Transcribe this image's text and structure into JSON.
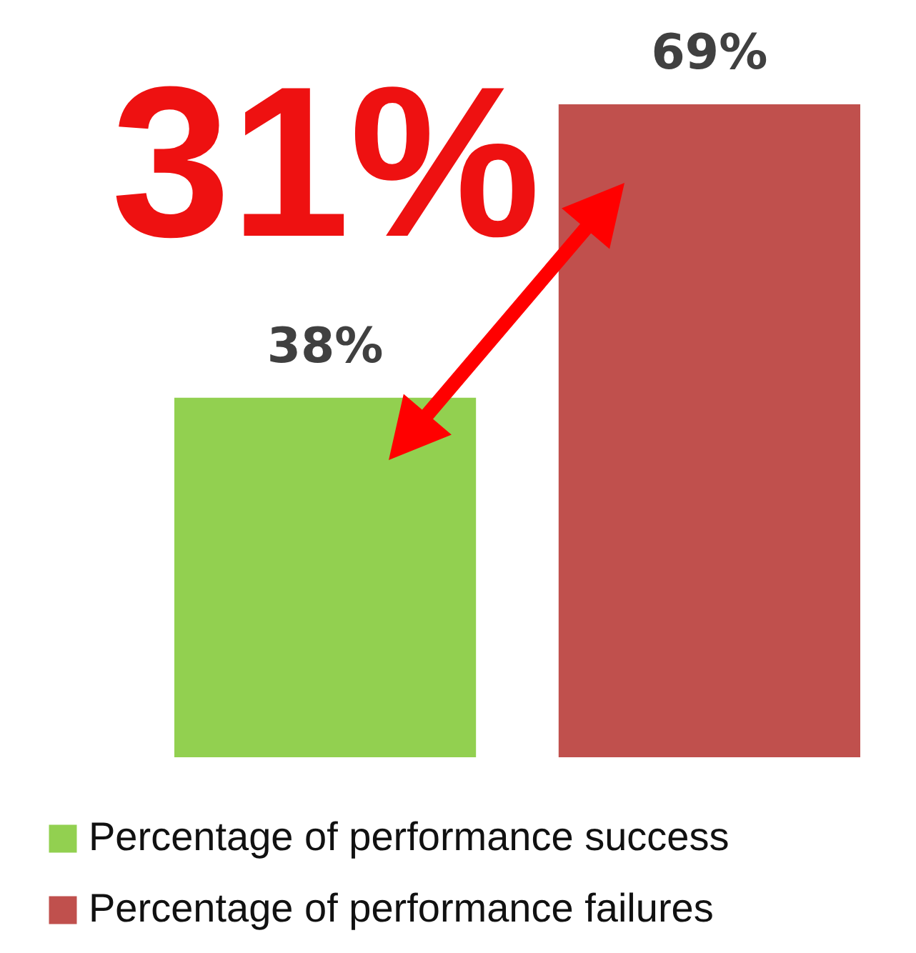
{
  "chart_data": {
    "type": "bar",
    "categories": [
      null
    ],
    "series": [
      {
        "name": "Percentage of performance success",
        "color": "#92d050",
        "values": [
          38
        ],
        "value_labels": [
          "38%"
        ]
      },
      {
        "name": "Percentage of performance failures",
        "color": "#c0504d",
        "values": [
          69
        ],
        "value_labels": [
          "69%"
        ]
      }
    ],
    "annotations": [
      "31%"
    ],
    "legend": "bottom",
    "tick_labels": false
  }
}
